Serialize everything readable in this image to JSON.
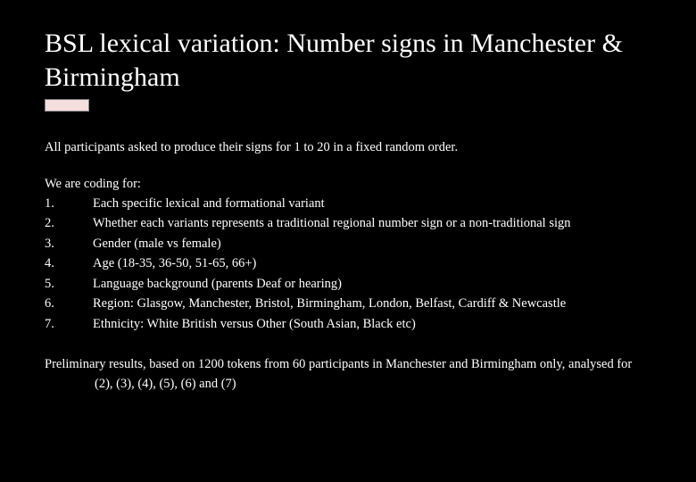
{
  "title": "BSL lexical variation: Number signs in Manchester & Birmingham",
  "intro": "All participants asked to produce their signs for 1 to 20 in a fixed random order.",
  "coding_label": "We are coding for:",
  "items": [
    {
      "num": "1.",
      "text": "Each specific lexical and formational variant"
    },
    {
      "num": "2.",
      "text": "Whether each variants represents a traditional regional number sign or a non-traditional sign"
    },
    {
      "num": "3.",
      "text": "Gender (male vs female)"
    },
    {
      "num": "4.",
      "text": "Age (18-35, 36-50, 51-65, 66+)"
    },
    {
      "num": "5.",
      "text": "Language background (parents Deaf or hearing)"
    },
    {
      "num": "6.",
      "text": "Region: Glasgow, Manchester, Bristol, Birmingham, London, Belfast, Cardiff & Newcastle"
    },
    {
      "num": "7.",
      "text": "Ethnicity: White British versus Other (South Asian, Black etc)"
    }
  ],
  "prelim": "Preliminary results, based on 1200 tokens from 60 participants in Manchester and Birmingham only, analysed for (2), (3), (4), (5), (6) and (7)"
}
